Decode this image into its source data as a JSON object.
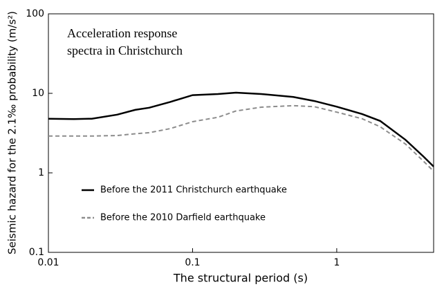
{
  "chart_data": {
    "type": "line",
    "annotation": [
      "Acceleration response",
      "spectra in Christchurch"
    ],
    "x_label": "The structural period (s)",
    "y_label": "Seismic hazard for the 2.1‰ probability (m/s²)",
    "x": [
      0.01,
      0.015,
      0.02,
      0.03,
      0.04,
      0.05,
      0.07,
      0.1,
      0.15,
      0.2,
      0.3,
      0.5,
      0.7,
      1,
      1.5,
      2,
      3,
      4,
      4.7
    ],
    "series": [
      {
        "name": "Before the 2011 Christchurch earthquake",
        "color": "#000000",
        "linestyle": "solid",
        "values": [
          4.8,
          4.75,
          4.8,
          5.4,
          6.2,
          6.6,
          7.8,
          9.5,
          9.8,
          10.2,
          9.8,
          9.0,
          8.0,
          6.8,
          5.5,
          4.5,
          2.6,
          1.6,
          1.2
        ]
      },
      {
        "name": "Before the 2010 Darfield earthquake",
        "color": "#8c8c8c",
        "linestyle": "dashed",
        "values": [
          2.9,
          2.9,
          2.9,
          2.95,
          3.1,
          3.2,
          3.6,
          4.4,
          5.0,
          6.0,
          6.7,
          7.0,
          6.8,
          5.8,
          4.8,
          3.8,
          2.3,
          1.4,
          1.05
        ]
      }
    ],
    "xlim": [
      0.01,
      4.7
    ],
    "ylim": [
      0.1,
      100
    ],
    "xticks": [
      0.01,
      0.1,
      1
    ],
    "yticks": [
      0.1,
      1,
      10,
      100
    ],
    "xscale": "log",
    "yscale": "log",
    "legend": "lower left"
  }
}
